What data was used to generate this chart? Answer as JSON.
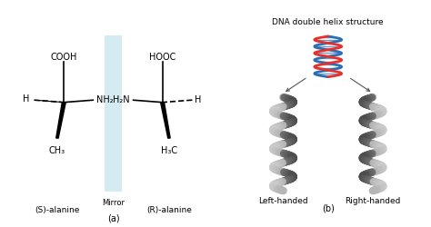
{
  "bg_color": "#ffffff",
  "mirror_color": "#add8e6",
  "mirror_alpha": 0.5,
  "panel_a_label": "(a)",
  "panel_b_label": "(b)",
  "s_alanine_label": "(S)-alanine",
  "r_alanine_label": "(R)-alanine",
  "mirror_label": "Mirror",
  "left_handed_label": "Left-handed",
  "right_handed_label": "Right-handed",
  "dna_title": "DNA double helix structure",
  "cooh_label": "COOH",
  "hooc_label": "HOOC",
  "h_left": "H",
  "nh2_label": "NH₂",
  "ch3_label": "CH₃",
  "h2n_label": "H₂N",
  "h_right": "H",
  "h3c_label": "H₃C",
  "line_color": "#000000",
  "text_color": "#000000",
  "dna_red": "#e8302a",
  "dna_blue": "#2a6fb5",
  "helix_gray": "#999999",
  "helix_dark": "#666666",
  "arrow_color": "#555555"
}
